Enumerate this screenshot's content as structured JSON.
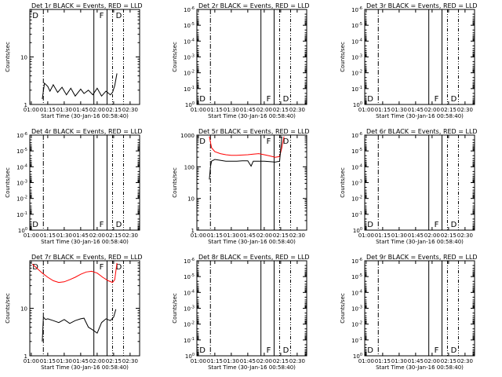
{
  "chart_data": [
    {
      "type": "line",
      "title": "Det 1r BLACK = Events, RED = LLD",
      "ylabel": "Counts/sec",
      "xlabel": "Start Time (30-Jan-16 00:58:40)",
      "xticks": [
        "01:00",
        "01:15",
        "01:30",
        "01:45",
        "02:00",
        "02:15",
        "02:30"
      ],
      "yscale": "log",
      "ylim": [
        1,
        100
      ],
      "yticks": [
        "1",
        "10"
      ],
      "markers": [
        {
          "label": "D",
          "x": "01:01"
        },
        {
          "label": "F",
          "x": "02:02"
        },
        {
          "label": "D",
          "x": "02:17"
        }
      ],
      "series": [
        {
          "color": "#000000",
          "x": [
            "01:10",
            "01:12",
            "01:15",
            "01:17",
            "01:20",
            "01:24",
            "01:28",
            "01:32",
            "01:36",
            "01:40",
            "01:45",
            "01:48",
            "01:52",
            "01:56",
            "02:00",
            "02:04",
            "02:08",
            "02:12",
            "02:14",
            "02:16",
            "02:18"
          ],
          "values": [
            1.3,
            2.8,
            2.4,
            1.9,
            2.6,
            1.8,
            2.3,
            1.6,
            2.2,
            1.5,
            2.1,
            1.7,
            2.0,
            1.6,
            2.2,
            1.5,
            1.9,
            1.6,
            1.8,
            2.5,
            4.5
          ]
        }
      ]
    },
    {
      "type": "line",
      "title": "Det 2r BLACK = Events, RED = LLD",
      "ylabel": "Counts/sec",
      "xlabel": "Start Time (30-Jan-16 00:58:40)",
      "xticks": [
        "01:00",
        "01:15",
        "01:30",
        "01:45",
        "02:00",
        "02:15",
        "02:30"
      ],
      "yscale": "log",
      "ylim": [
        1,
        1e-06
      ],
      "yticks": [
        "10^0",
        "10^-1",
        "10^-2",
        "10^-3",
        "10^-4",
        "10^-5",
        "10^-6"
      ],
      "markers": [
        {
          "label": "D",
          "x": "01:01"
        },
        {
          "label": "F",
          "x": "02:02"
        },
        {
          "label": "D",
          "x": "02:17"
        }
      ],
      "series": []
    },
    {
      "type": "line",
      "title": "Det 3r BLACK = Events, RED = LLD",
      "ylabel": "Counts/sec",
      "xlabel": "Start Time (30-Jan-16 00:58:40)",
      "xticks": [
        "01:00",
        "01:15",
        "01:30",
        "01:45",
        "02:00",
        "02:15",
        "02:30"
      ],
      "yscale": "log",
      "ylim": [
        1,
        1e-06
      ],
      "yticks": [
        "10^0",
        "10^-1",
        "10^-2",
        "10^-3",
        "10^-4",
        "10^-5",
        "10^-6"
      ],
      "markers": [
        {
          "label": "D",
          "x": "01:01"
        },
        {
          "label": "F",
          "x": "02:02"
        },
        {
          "label": "D",
          "x": "02:17"
        }
      ],
      "series": []
    },
    {
      "type": "line",
      "title": "Det 4r BLACK = Events, RED = LLD",
      "ylabel": "Counts/sec",
      "xlabel": "Start Time (30-Jan-16 00:58:40)",
      "xticks": [
        "01:00",
        "01:15",
        "01:30",
        "01:45",
        "02:00",
        "02:15",
        "02:30"
      ],
      "yscale": "log",
      "ylim": [
        1,
        1e-06
      ],
      "yticks": [
        "10^0",
        "10^-1",
        "10^-2",
        "10^-3",
        "10^-4",
        "10^-5",
        "10^-6"
      ],
      "markers": [
        {
          "label": "D",
          "x": "01:01"
        },
        {
          "label": "F",
          "x": "02:02"
        },
        {
          "label": "D",
          "x": "02:17"
        }
      ],
      "series": []
    },
    {
      "type": "line",
      "title": "Det 5r BLACK = Events, RED = LLD",
      "ylabel": "Counts/sec",
      "xlabel": "Start Time (30-Jan-16 00:58:40)",
      "xticks": [
        "01:00",
        "01:15",
        "01:30",
        "01:45",
        "02:00",
        "02:15",
        "02:30"
      ],
      "yscale": "log",
      "ylim": [
        1,
        1000
      ],
      "yticks": [
        "1",
        "10",
        "100",
        "1000"
      ],
      "markers": [
        {
          "label": "D",
          "x": "01:01"
        },
        {
          "label": "F",
          "x": "02:02"
        },
        {
          "label": "D",
          "x": "02:17"
        }
      ],
      "series": [
        {
          "color": "#ff0000",
          "x": [
            "01:10",
            "01:12",
            "01:15",
            "01:20",
            "01:25",
            "01:30",
            "01:35",
            "01:40",
            "01:45",
            "01:50",
            "01:55",
            "02:00",
            "02:05",
            "02:10",
            "02:14",
            "02:16",
            "02:18"
          ],
          "values": [
            900,
            400,
            300,
            260,
            240,
            230,
            230,
            235,
            240,
            250,
            260,
            240,
            220,
            200,
            210,
            400,
            900
          ]
        },
        {
          "color": "#000000",
          "x": [
            "01:10",
            "01:11",
            "01:12",
            "01:15",
            "01:20",
            "01:25",
            "01:30",
            "01:35",
            "01:40",
            "01:45",
            "01:48",
            "01:50",
            "01:55",
            "02:00",
            "02:05",
            "02:10",
            "02:14",
            "02:16"
          ],
          "values": [
            40,
            100,
            150,
            170,
            160,
            150,
            150,
            150,
            155,
            155,
            105,
            150,
            150,
            150,
            145,
            140,
            150,
            900
          ]
        }
      ]
    },
    {
      "type": "line",
      "title": "Det 6r BLACK = Events, RED = LLD",
      "ylabel": "Counts/sec",
      "xlabel": "Start Time (30-Jan-16 00:58:40)",
      "xticks": [
        "01:00",
        "01:15",
        "01:30",
        "01:45",
        "02:00",
        "02:15",
        "02:30"
      ],
      "yscale": "log",
      "ylim": [
        1,
        1e-06
      ],
      "yticks": [
        "10^0",
        "10^-1",
        "10^-2",
        "10^-3",
        "10^-4",
        "10^-5",
        "10^-6"
      ],
      "markers": [
        {
          "label": "D",
          "x": "01:01"
        },
        {
          "label": "F",
          "x": "02:02"
        },
        {
          "label": "D",
          "x": "02:17"
        }
      ],
      "series": []
    },
    {
      "type": "line",
      "title": "Det 7r BLACK = Events, RED = LLD",
      "ylabel": "Counts/sec",
      "xlabel": "Start Time (30-Jan-16 00:58:40)",
      "xticks": [
        "01:00",
        "01:15",
        "01:30",
        "01:45",
        "02:00",
        "02:15",
        "02:30"
      ],
      "yscale": "log",
      "ylim": [
        1,
        100
      ],
      "yticks": [
        "1",
        "10"
      ],
      "markers": [
        {
          "label": "D",
          "x": "01:01"
        },
        {
          "label": "F",
          "x": "02:02"
        },
        {
          "label": "D",
          "x": "02:17"
        }
      ],
      "series": [
        {
          "color": "#ff0000",
          "x": [
            "01:01",
            "01:05",
            "01:10",
            "01:15",
            "01:20",
            "01:25",
            "01:30",
            "01:35",
            "01:40",
            "01:45",
            "01:50",
            "01:55",
            "02:00",
            "02:05",
            "02:10",
            "02:14",
            "02:16",
            "02:18"
          ],
          "values": [
            85,
            70,
            55,
            45,
            38,
            35,
            36,
            40,
            45,
            52,
            58,
            60,
            55,
            45,
            38,
            35,
            40,
            90
          ]
        },
        {
          "color": "#000000",
          "x": [
            "01:10",
            "01:11",
            "01:13",
            "01:15",
            "01:20",
            "01:25",
            "01:30",
            "01:35",
            "01:40",
            "01:45",
            "01:48",
            "01:52",
            "01:56",
            "02:00",
            "02:04",
            "02:08",
            "02:12",
            "02:15",
            "02:17"
          ],
          "values": [
            2.0,
            6.5,
            5.8,
            6.0,
            5.5,
            5.0,
            5.8,
            4.8,
            5.5,
            6.0,
            6.2,
            4.0,
            3.5,
            3.0,
            5.0,
            6.0,
            5.5,
            6.5,
            9.5
          ]
        }
      ]
    },
    {
      "type": "line",
      "title": "Det 8r BLACK = Events, RED = LLD",
      "ylabel": "Counts/sec",
      "xlabel": "Start Time (30-Jan-16 00:58:40)",
      "xticks": [
        "01:00",
        "01:15",
        "01:30",
        "01:45",
        "02:00",
        "02:15",
        "02:30"
      ],
      "yscale": "log",
      "ylim": [
        1,
        1e-06
      ],
      "yticks": [
        "10^0",
        "10^-1",
        "10^-2",
        "10^-3",
        "10^-4",
        "10^-5",
        "10^-6"
      ],
      "markers": [
        {
          "label": "D",
          "x": "01:01"
        },
        {
          "label": "F",
          "x": "02:02"
        },
        {
          "label": "D",
          "x": "02:17"
        }
      ],
      "series": []
    },
    {
      "type": "line",
      "title": "Det 9r BLACK = Events, RED = LLD",
      "ylabel": "Counts/sec",
      "xlabel": "Start Time (30-Jan-16 00:58:40)",
      "xticks": [
        "01:00",
        "01:15",
        "01:30",
        "01:45",
        "02:00",
        "02:15",
        "02:30"
      ],
      "yscale": "log",
      "ylim": [
        1,
        1e-06
      ],
      "yticks": [
        "10^0",
        "10^-1",
        "10^-2",
        "10^-3",
        "10^-4",
        "10^-5",
        "10^-6"
      ],
      "markers": [
        {
          "label": "D",
          "x": "01:01"
        },
        {
          "label": "F",
          "x": "02:02"
        },
        {
          "label": "D",
          "x": "02:17"
        }
      ],
      "series": []
    }
  ]
}
